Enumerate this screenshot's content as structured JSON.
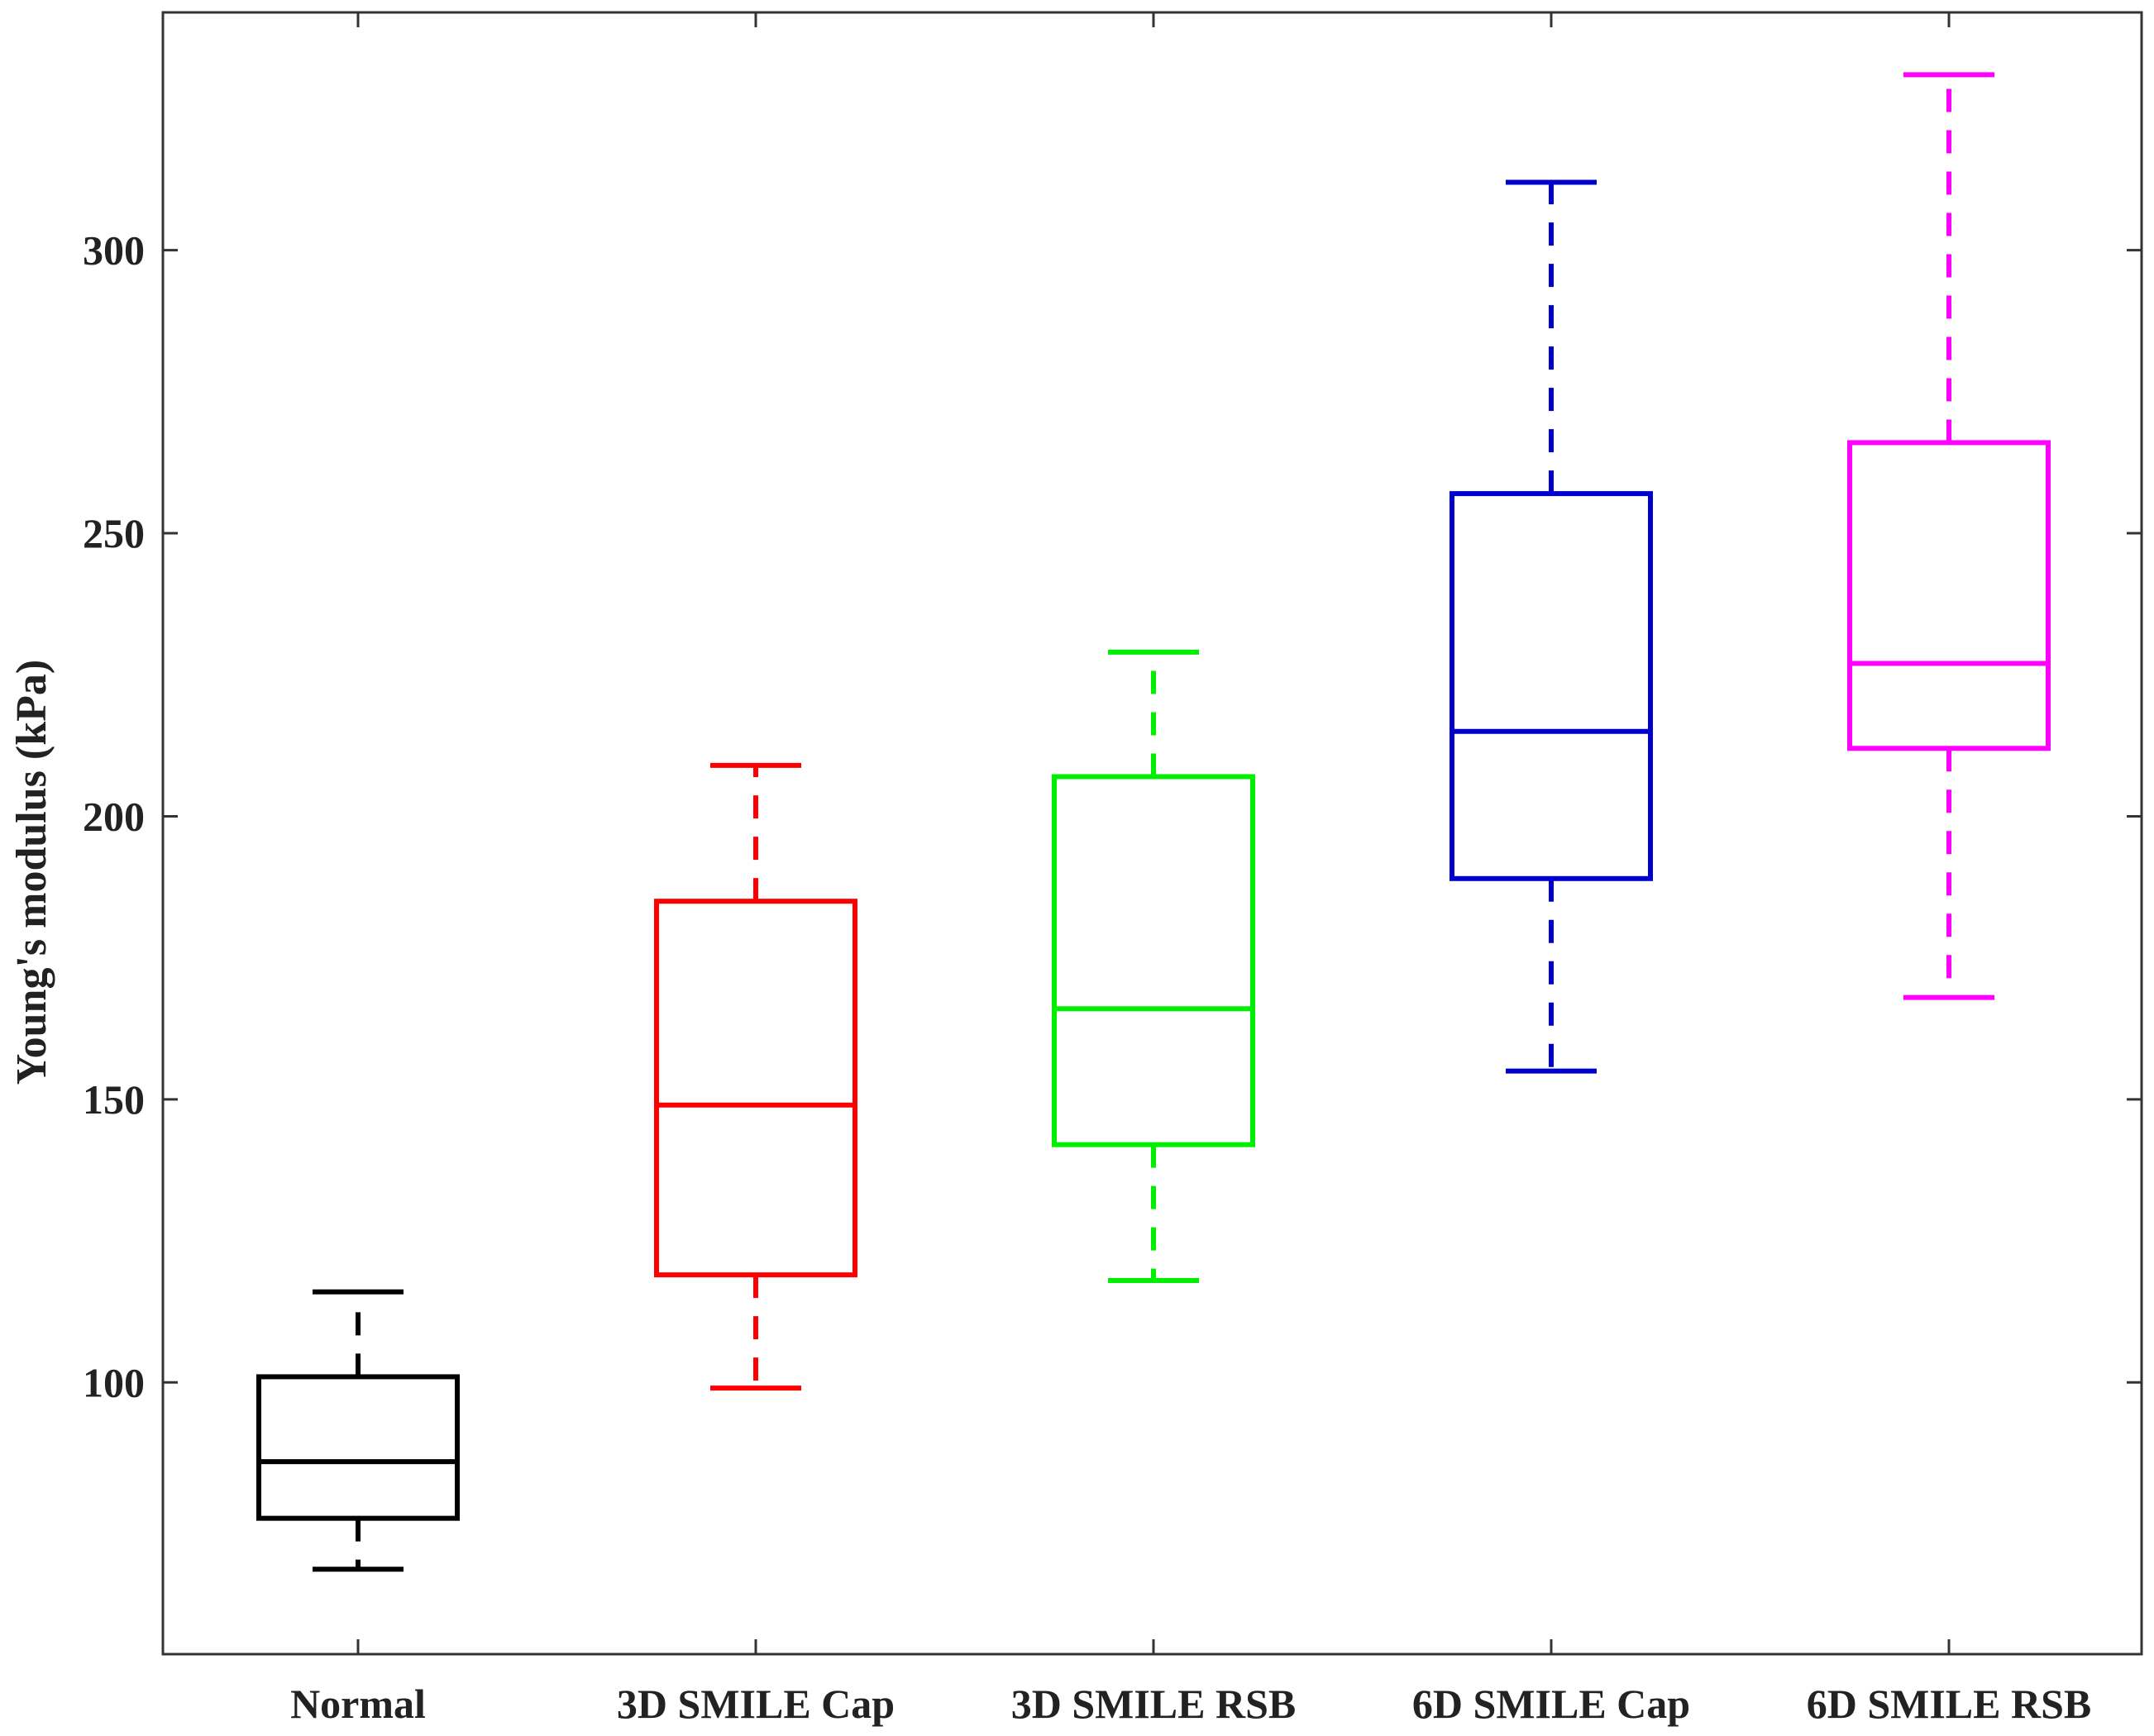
{
  "chart_data": {
    "type": "box",
    "title": "",
    "xlabel": "",
    "ylabel": "Young's modulus (kPa)",
    "ylim": [
      52,
      342
    ],
    "yticks": [
      100,
      150,
      200,
      250,
      300
    ],
    "grid": false,
    "categories": [
      "Normal",
      "3D SMILE Cap",
      "3D SMILE RSB",
      "6D SMILE Cap",
      "6D SMILE RSB"
    ],
    "series": [
      {
        "name": "Normal",
        "color": "#000000",
        "whisker_low": 67,
        "q1": 76,
        "median": 86,
        "q3": 101,
        "whisker_high": 116
      },
      {
        "name": "3D SMILE Cap",
        "color": "#ff0000",
        "whisker_low": 99,
        "q1": 119,
        "median": 149,
        "q3": 185,
        "whisker_high": 209
      },
      {
        "name": "3D SMILE RSB",
        "color": "#00ee00",
        "whisker_low": 118,
        "q1": 142,
        "median": 166,
        "q3": 207,
        "whisker_high": 229
      },
      {
        "name": "6D SMILE Cap",
        "color": "#0000cc",
        "whisker_low": 155,
        "q1": 189,
        "median": 215,
        "q3": 257,
        "whisker_high": 312
      },
      {
        "name": "6D SMILE RSB",
        "color": "#ff00ff",
        "whisker_low": 168,
        "q1": 212,
        "median": 227,
        "q3": 266,
        "whisker_high": 331
      }
    ]
  }
}
